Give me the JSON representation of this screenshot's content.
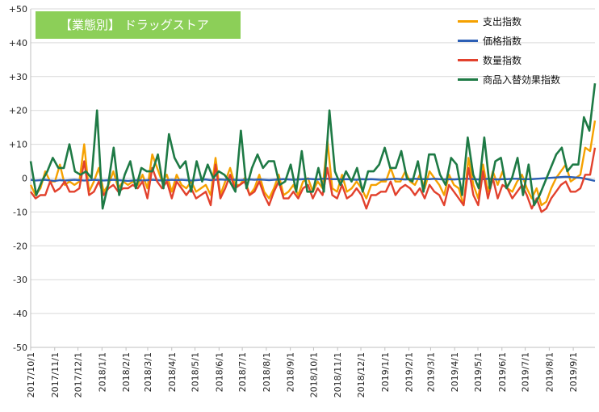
{
  "chart_data": {
    "type": "line",
    "title": "【業態別】 ドラッグストア",
    "ylim": [
      -50,
      50
    ],
    "y_ticks": [
      "+50",
      "+40",
      "+30",
      "+20",
      "+10",
      "0",
      "-10",
      "-20",
      "-30",
      "-40",
      "-50"
    ],
    "y_tick_values": [
      50,
      40,
      30,
      20,
      10,
      0,
      -10,
      -20,
      -30,
      -40,
      -50
    ],
    "x_range": [
      "2017/10/1",
      "2019/9/29"
    ],
    "x_ticks": [
      "2017/10/1",
      "2017/11/1",
      "2017/12/1",
      "2018/1/1",
      "2018/2/1",
      "2018/3/1",
      "2018/4/1",
      "2018/5/1",
      "2018/6/1",
      "2018/7/1",
      "2018/8/1",
      "2018/9/1",
      "2018/10/1",
      "2018/11/1",
      "2018/12/1",
      "2019/1/1",
      "2019/2/1",
      "2019/3/1",
      "2019/4/1",
      "2019/5/1",
      "2019/6/1",
      "2019/7/1",
      "2019/8/1",
      "2019/9/1"
    ],
    "grid": true,
    "legend_position": "top-right",
    "series": [
      {
        "name": "支出指数",
        "color": "#f5a100",
        "values": [
          -2,
          -5,
          -3,
          2,
          -1,
          -1,
          4,
          -2,
          -1,
          -2,
          -1,
          10,
          -4,
          -1,
          3,
          -4,
          -2,
          2,
          -3,
          -1,
          -2,
          -1,
          -2,
          1,
          -3,
          7,
          3,
          -1,
          1,
          -4,
          1,
          -2,
          -3,
          -1,
          -4,
          -3,
          -2,
          -5,
          6,
          -5,
          -1,
          3,
          -2,
          -2,
          0,
          -5,
          -3,
          1,
          -4,
          -6,
          -3,
          1,
          -5,
          -4,
          -2,
          -5,
          -1,
          0,
          -4,
          -1,
          -3,
          11,
          -3,
          -4,
          1,
          -4,
          -3,
          -1,
          -3,
          -6,
          -2,
          -2,
          -1,
          -1,
          3,
          -1,
          -1,
          2,
          -1,
          -2,
          1,
          -3,
          2,
          0,
          -2,
          -5,
          1,
          -2,
          -3,
          -8,
          6,
          -2,
          -6,
          4,
          -4,
          2,
          -2,
          2,
          -3,
          -4,
          -1,
          1,
          -3,
          -6,
          -3,
          -8,
          -7,
          -3,
          0,
          2,
          4,
          -1,
          0,
          1,
          9,
          8,
          17
        ]
      },
      {
        "name": "価格指数",
        "color": "#2c5fb5",
        "values": [
          -0.5,
          -0.7,
          -0.6,
          -0.5,
          -0.7,
          -0.8,
          -0.6,
          -0.7,
          -0.6,
          -0.5,
          -0.6,
          -0.7,
          -0.6,
          -0.5,
          -0.6,
          -0.7,
          -0.6,
          -0.5,
          -0.6,
          -0.7,
          -0.8,
          -0.7,
          -0.6,
          -0.7,
          -0.6,
          -0.5,
          -0.6,
          -0.7,
          -0.6,
          -0.5,
          -0.6,
          -0.5,
          -0.6,
          -0.7,
          -0.6,
          -0.5,
          -0.4,
          -0.6,
          -0.5,
          -0.4,
          -0.5,
          -0.4,
          -0.5,
          -0.6,
          -0.5,
          -0.4,
          -0.5,
          -0.4,
          -0.5,
          -0.6,
          -0.5,
          -0.4,
          -0.3,
          -0.4,
          -0.5,
          -0.4,
          -0.3,
          -0.2,
          -0.3,
          -0.4,
          -0.2,
          -0.2,
          -0.3,
          -0.3,
          -0.4,
          -0.3,
          -0.4,
          -0.5,
          -0.3,
          -0.4,
          -0.3,
          -0.4,
          -0.5,
          -0.4,
          -0.3,
          -0.2,
          -0.3,
          -0.4,
          -0.3,
          -0.2,
          -0.3,
          -0.3,
          -0.3,
          -0.2,
          -0.3,
          -0.4,
          -0.3,
          -0.4,
          -0.3,
          -0.2,
          -0.2,
          -0.3,
          -0.4,
          -0.3,
          -0.2,
          -0.3,
          -0.4,
          -0.3,
          -0.3,
          -0.2,
          -0.2,
          -0.3,
          -0.3,
          -0.3,
          -0.2,
          -0.1,
          0,
          0.1,
          0.2,
          0.3,
          0.4,
          0.3,
          0.2,
          0.1,
          -0.2,
          -0.5,
          -0.8
        ]
      },
      {
        "name": "数量指数",
        "color": "#e2412d",
        "values": [
          -4,
          -6,
          -5,
          -5,
          -1,
          -4,
          -3,
          -1,
          -4,
          -4,
          -3,
          5,
          -5,
          -4,
          -1,
          -5,
          -3,
          -2,
          -4,
          -3,
          -3,
          -2,
          -3,
          -1,
          -6,
          3,
          -1,
          -3,
          -1,
          -6,
          -1,
          -3,
          -5,
          -3,
          -6,
          -5,
          -4,
          -8,
          4,
          -6,
          -3,
          1,
          -3,
          -2,
          -1,
          -5,
          -4,
          -1,
          -5,
          -8,
          -4,
          -1,
          -6,
          -6,
          -4,
          -6,
          -3,
          -2,
          -6,
          -3,
          -5,
          3,
          -5,
          -6,
          -2,
          -6,
          -5,
          -3,
          -5,
          -9,
          -5,
          -5,
          -4,
          -4,
          -1,
          -5,
          -3,
          -2,
          -3,
          -5,
          -3,
          -6,
          -2,
          -4,
          -5,
          -8,
          -2,
          -4,
          -6,
          -8,
          3,
          -5,
          -8,
          2,
          -6,
          0,
          -6,
          -2,
          -3,
          -6,
          -4,
          -2,
          -5,
          -9,
          -6,
          -10,
          -9,
          -6,
          -4,
          -2,
          -1,
          -4,
          -4,
          -3,
          1,
          1,
          9
        ]
      },
      {
        "name": "商品入替効果指数",
        "color": "#1e7a45",
        "values": [
          5,
          -5,
          -1,
          2,
          6,
          3,
          3,
          10,
          2,
          1,
          2,
          0,
          20,
          -9,
          -2,
          9,
          -5,
          1,
          5,
          -3,
          3,
          2,
          2,
          7,
          -3,
          13,
          6,
          3,
          5,
          -4,
          5,
          -1,
          4,
          0,
          2,
          1,
          -1,
          -4,
          14,
          -3,
          3,
          7,
          3,
          5,
          5,
          -2,
          -1,
          4,
          -4,
          8,
          -4,
          -4,
          3,
          -4,
          20,
          2,
          -2,
          2,
          -1,
          3,
          -4,
          2,
          2,
          4,
          9,
          3,
          3,
          8,
          0,
          -1,
          5,
          -4,
          7,
          7,
          1,
          -2,
          6,
          4,
          -5,
          12,
          1,
          -3,
          12,
          -3,
          5,
          6,
          -3,
          0,
          6,
          -5,
          4,
          -8,
          -5,
          -1,
          3,
          7,
          9,
          2,
          4,
          4,
          18,
          14,
          28
        ]
      }
    ]
  }
}
